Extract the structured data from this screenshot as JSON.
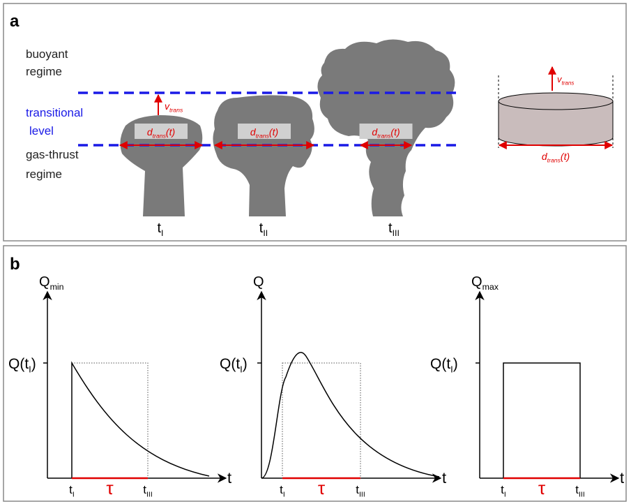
{
  "panel_a": {
    "label": "a",
    "buoyant": [
      "buoyant",
      "regime"
    ],
    "transitional": [
      "transitional",
      "level"
    ],
    "gas_thrust": [
      "gas-thrust",
      "regime"
    ],
    "d_label": {
      "base": "d",
      "sub": "trans",
      "suffix": "(t)"
    },
    "v_label": {
      "base": "v",
      "sub": "trans"
    },
    "times": [
      {
        "base": "t",
        "sub": "I"
      },
      {
        "base": "t",
        "sub": "II"
      },
      {
        "base": "t",
        "sub": "III"
      }
    ]
  },
  "panel_b": {
    "label": "b",
    "plots": [
      {
        "y_label": {
          "base": "Q",
          "sub": "min"
        },
        "x_label": "t",
        "y_tick": {
          "base": "Q(t",
          "sub": "I",
          "suffix": ")"
        },
        "x_ticks": [
          {
            "base": "t",
            "sub": "I"
          },
          {
            "base": "t",
            "sub": "III"
          }
        ],
        "duration": "τ"
      },
      {
        "y_label": {
          "base": "Q"
        },
        "x_label": "t",
        "y_tick": {
          "base": "Q(t",
          "sub": "I",
          "suffix": ")"
        },
        "x_ticks": [
          {
            "base": "t",
            "sub": "I"
          },
          {
            "base": "t",
            "sub": "III"
          }
        ],
        "duration": "τ"
      },
      {
        "y_label": {
          "base": "Q",
          "sub": "max"
        },
        "x_label": "t",
        "y_tick": {
          "base": "Q(t",
          "sub": "I",
          "suffix": ")"
        },
        "x_ticks": [
          {
            "base": "t",
            "sub": "I"
          },
          {
            "base": "t",
            "sub": "III"
          }
        ],
        "duration": "τ"
      }
    ]
  }
}
